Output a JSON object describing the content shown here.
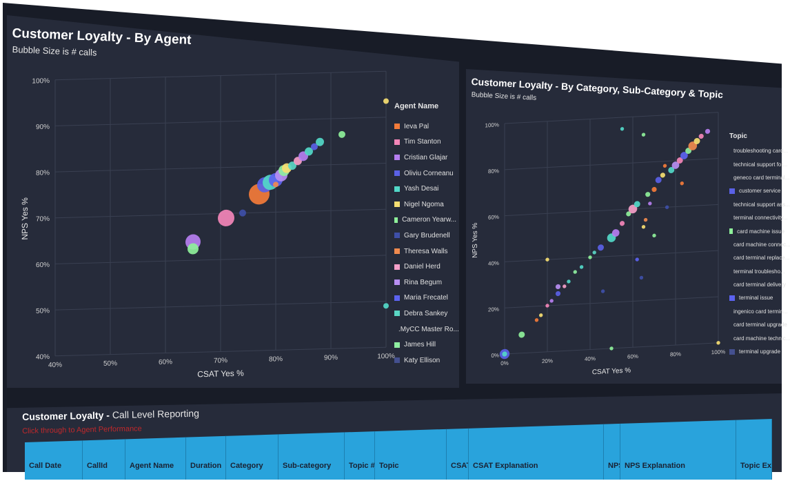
{
  "colors": {
    "background": "#181c27",
    "panel": "#262b3a",
    "grid": "#3a4052",
    "text": "#e6e6e6",
    "header": "#29a3dc",
    "link": "#c0282b"
  },
  "left_panel": {
    "title": "Customer Loyalty - By Agent",
    "subtitle": "Bubble Size is # calls",
    "legend_title": "Agent Name",
    "legend": [
      {
        "name": "Ieva Pal",
        "color": "#f37b3a"
      },
      {
        "name": "Tim Stanton",
        "color": "#f386b8"
      },
      {
        "name": "Cristian Glajar",
        "color": "#b57ef0"
      },
      {
        "name": "Oliviu Corneanu",
        "color": "#5a61e6"
      },
      {
        "name": "Yash Desai",
        "color": "#52d8c8"
      },
      {
        "name": "Nigel Ngoma",
        "color": "#f6de72"
      },
      {
        "name": "Cameron Yearw...",
        "color": "#8ef09a"
      },
      {
        "name": "Gary Brudenell",
        "color": "#3e4fa8"
      },
      {
        "name": "Theresa Walls",
        "color": "#f08a4e"
      },
      {
        "name": "Daniel Herd",
        "color": "#f59fc8"
      },
      {
        "name": "Rina Begum",
        "color": "#b78ef2"
      },
      {
        "name": "Maria Frecatel",
        "color": "#5c63f0"
      },
      {
        "name": "Debra Sankey",
        "color": "#5ad6c4"
      },
      {
        "name": ".MyCC Master Ro...",
        "color": "#f6d76c"
      },
      {
        "name": "James Hill",
        "color": "#8eeea0"
      },
      {
        "name": "Katy Ellison",
        "color": "#44508f"
      }
    ]
  },
  "chart_data": [
    {
      "type": "scatter",
      "title": "Customer Loyalty - By Agent",
      "subtitle": "Bubble Size is # calls",
      "xlabel": "CSAT Yes %",
      "ylabel": "NPS Yes %",
      "xlim": [
        40,
        100
      ],
      "ylim": [
        40,
        100
      ],
      "x_ticks": [
        "40%",
        "50%",
        "60%",
        "70%",
        "80%",
        "90%",
        "100%"
      ],
      "y_ticks": [
        "40%",
        "50%",
        "60%",
        "70%",
        "80%",
        "90%",
        "100%"
      ],
      "grid": true,
      "legend_position": "right",
      "points": [
        {
          "x": 65,
          "y": 64,
          "size": 22,
          "color": "#b57ef0"
        },
        {
          "x": 65,
          "y": 62.5,
          "size": 16,
          "color": "#8ef09a"
        },
        {
          "x": 71,
          "y": 69,
          "size": 24,
          "color": "#f386b8"
        },
        {
          "x": 74,
          "y": 70,
          "size": 10,
          "color": "#3e4fa8"
        },
        {
          "x": 77,
          "y": 74,
          "size": 30,
          "color": "#f37b3a"
        },
        {
          "x": 78,
          "y": 76,
          "size": 22,
          "color": "#5a61e6"
        },
        {
          "x": 79,
          "y": 76.5,
          "size": 22,
          "color": "#52d8c8"
        },
        {
          "x": 80,
          "y": 77,
          "size": 20,
          "color": "#5c63f0"
        },
        {
          "x": 81,
          "y": 78,
          "size": 18,
          "color": "#b78ef2"
        },
        {
          "x": 81.5,
          "y": 79,
          "size": 16,
          "color": "#8eeea0"
        },
        {
          "x": 82,
          "y": 79.5,
          "size": 14,
          "color": "#f6de72"
        },
        {
          "x": 83,
          "y": 80,
          "size": 12,
          "color": "#5ad6c4"
        },
        {
          "x": 84,
          "y": 81,
          "size": 12,
          "color": "#f59fc8"
        },
        {
          "x": 85,
          "y": 82,
          "size": 14,
          "color": "#b57ef0"
        },
        {
          "x": 86,
          "y": 83,
          "size": 12,
          "color": "#52d8c8"
        },
        {
          "x": 87,
          "y": 84,
          "size": 10,
          "color": "#5a61e6"
        },
        {
          "x": 88,
          "y": 85,
          "size": 12,
          "color": "#52d8c8"
        },
        {
          "x": 92,
          "y": 86.5,
          "size": 10,
          "color": "#8ef09a"
        },
        {
          "x": 100,
          "y": 93.5,
          "size": 8,
          "color": "#f6de72"
        },
        {
          "x": 100,
          "y": 49,
          "size": 8,
          "color": "#52d8c8"
        },
        {
          "x": 80,
          "y": 76,
          "size": 8,
          "color": "#f08a4e"
        }
      ]
    },
    {
      "type": "scatter",
      "title": "Customer Loyalty - By Category, Sub-Category & Topic",
      "subtitle": "Bubble Size is # calls",
      "xlabel": "CSAT Yes %",
      "ylabel": "NPS Yes %",
      "xlim": [
        0,
        100
      ],
      "ylim": [
        0,
        100
      ],
      "x_ticks": [
        "0%",
        "20%",
        "40%",
        "60%",
        "80%",
        "100%"
      ],
      "y_ticks": [
        "0%",
        "20%",
        "40%",
        "60%",
        "80%",
        "100%"
      ],
      "grid": true,
      "legend_position": "right",
      "points": [
        {
          "x": 0,
          "y": 0,
          "size": 16,
          "color": "#5a61e6"
        },
        {
          "x": 0,
          "y": 0,
          "size": 8,
          "color": "#52d8c8"
        },
        {
          "x": 8,
          "y": 8,
          "size": 10,
          "color": "#8ef09a"
        },
        {
          "x": 15,
          "y": 14,
          "size": 6,
          "color": "#f37b3a"
        },
        {
          "x": 17,
          "y": 16,
          "size": 6,
          "color": "#f6de72"
        },
        {
          "x": 20,
          "y": 20,
          "size": 6,
          "color": "#f386b8"
        },
        {
          "x": 20,
          "y": 40,
          "size": 6,
          "color": "#f6de72"
        },
        {
          "x": 22,
          "y": 22,
          "size": 6,
          "color": "#b57ef0"
        },
        {
          "x": 25,
          "y": 25,
          "size": 8,
          "color": "#5a61e6"
        },
        {
          "x": 25,
          "y": 28,
          "size": 8,
          "color": "#b78ef2"
        },
        {
          "x": 28,
          "y": 28,
          "size": 6,
          "color": "#f59fc8"
        },
        {
          "x": 30,
          "y": 30,
          "size": 6,
          "color": "#52d8c8"
        },
        {
          "x": 33,
          "y": 34,
          "size": 6,
          "color": "#8eeea0"
        },
        {
          "x": 36,
          "y": 36,
          "size": 6,
          "color": "#52d8c8"
        },
        {
          "x": 40,
          "y": 40,
          "size": 6,
          "color": "#8ef09a"
        },
        {
          "x": 42,
          "y": 42,
          "size": 6,
          "color": "#5ad6c4"
        },
        {
          "x": 45,
          "y": 44,
          "size": 10,
          "color": "#5a61e6"
        },
        {
          "x": 46,
          "y": 25,
          "size": 6,
          "color": "#3e4fa8"
        },
        {
          "x": 50,
          "y": 48,
          "size": 14,
          "color": "#52d8c8"
        },
        {
          "x": 50,
          "y": 0,
          "size": 6,
          "color": "#8ef09a"
        },
        {
          "x": 52,
          "y": 50,
          "size": 12,
          "color": "#b57ef0"
        },
        {
          "x": 55,
          "y": 54,
          "size": 8,
          "color": "#f386b8"
        },
        {
          "x": 58,
          "y": 58,
          "size": 8,
          "color": "#8ef09a"
        },
        {
          "x": 60,
          "y": 60,
          "size": 14,
          "color": "#f59fc8"
        },
        {
          "x": 62,
          "y": 38,
          "size": 6,
          "color": "#5c63f0"
        },
        {
          "x": 62,
          "y": 62,
          "size": 10,
          "color": "#52d8c8"
        },
        {
          "x": 64,
          "y": 30,
          "size": 6,
          "color": "#3e4fa8"
        },
        {
          "x": 65,
          "y": 52,
          "size": 6,
          "color": "#f6de72"
        },
        {
          "x": 66,
          "y": 55,
          "size": 6,
          "color": "#f08a4e"
        },
        {
          "x": 67,
          "y": 66,
          "size": 8,
          "color": "#8ef09a"
        },
        {
          "x": 68,
          "y": 62,
          "size": 6,
          "color": "#b57ef0"
        },
        {
          "x": 70,
          "y": 68,
          "size": 8,
          "color": "#f37b3a"
        },
        {
          "x": 70,
          "y": 48,
          "size": 6,
          "color": "#8ef09a"
        },
        {
          "x": 72,
          "y": 72,
          "size": 10,
          "color": "#5a61e6"
        },
        {
          "x": 74,
          "y": 74,
          "size": 8,
          "color": "#f6de72"
        },
        {
          "x": 75,
          "y": 78,
          "size": 6,
          "color": "#f37b3a"
        },
        {
          "x": 76,
          "y": 60,
          "size": 6,
          "color": "#3e4fa8"
        },
        {
          "x": 78,
          "y": 76,
          "size": 10,
          "color": "#52d8c8"
        },
        {
          "x": 80,
          "y": 78,
          "size": 12,
          "color": "#b78ef2"
        },
        {
          "x": 82,
          "y": 80,
          "size": 10,
          "color": "#f386b8"
        },
        {
          "x": 83,
          "y": 70,
          "size": 6,
          "color": "#f37b3a"
        },
        {
          "x": 84,
          "y": 82,
          "size": 12,
          "color": "#5c63f0"
        },
        {
          "x": 86,
          "y": 84,
          "size": 10,
          "color": "#8eeea0"
        },
        {
          "x": 88,
          "y": 86,
          "size": 14,
          "color": "#f08a4e"
        },
        {
          "x": 90,
          "y": 88,
          "size": 10,
          "color": "#f6de72"
        },
        {
          "x": 92,
          "y": 90,
          "size": 8,
          "color": "#f386b8"
        },
        {
          "x": 95,
          "y": 92,
          "size": 8,
          "color": "#b57ef0"
        },
        {
          "x": 55,
          "y": 95,
          "size": 6,
          "color": "#52d8c8"
        },
        {
          "x": 65,
          "y": 92,
          "size": 6,
          "color": "#8ef09a"
        },
        {
          "x": 100,
          "y": 0,
          "size": 6,
          "color": "#f6de72"
        }
      ]
    }
  ],
  "right_panel": {
    "title": "Customer Loyalty - By Category, Sub-Category & Topic",
    "subtitle": "Bubble Size is # calls",
    "legend_title": "Topic",
    "legend": [
      {
        "name": "troubleshooting card...",
        "color": "#f37b3a"
      },
      {
        "name": "technical support for...",
        "color": "#f386b8"
      },
      {
        "name": "geneco card terminal...",
        "color": "#b57ef0"
      },
      {
        "name": "customer service",
        "color": "#5a61e6"
      },
      {
        "name": "technical support ass...",
        "color": "#52d8c8"
      },
      {
        "name": "terminal connectivity...",
        "color": "#f6de72"
      },
      {
        "name": "card machine issue",
        "color": "#8ef09a"
      },
      {
        "name": "card machine connec...",
        "color": "#3e4fa8"
      },
      {
        "name": "card terminal replace...",
        "color": "#f08a4e"
      },
      {
        "name": "terminal troublesho...",
        "color": "#f59fc8"
      },
      {
        "name": "card terminal delivery",
        "color": "#b78ef2"
      },
      {
        "name": "terminal issue",
        "color": "#5c63f0"
      },
      {
        "name": "ingenico card termin...",
        "color": "#5ad6c4"
      },
      {
        "name": "card terminal upgrade",
        "color": "#f6d76c"
      },
      {
        "name": "card machine technic...",
        "color": "#8eeea0"
      },
      {
        "name": "terminal upgrade",
        "color": "#44508f"
      }
    ]
  },
  "bottom_panel": {
    "title": "Customer Loyalty - ",
    "title_rest": "Call Level Reporting",
    "link": "Click through to Agent Performance",
    "columns": [
      "Call Date",
      "CallId",
      "Agent Name",
      "Duration",
      "Category",
      "Sub-category",
      "Topic #",
      "Topic",
      "CSAT",
      "CSAT Explanation",
      "NPS",
      "NPS Explanation",
      "Topic Explan"
    ]
  }
}
